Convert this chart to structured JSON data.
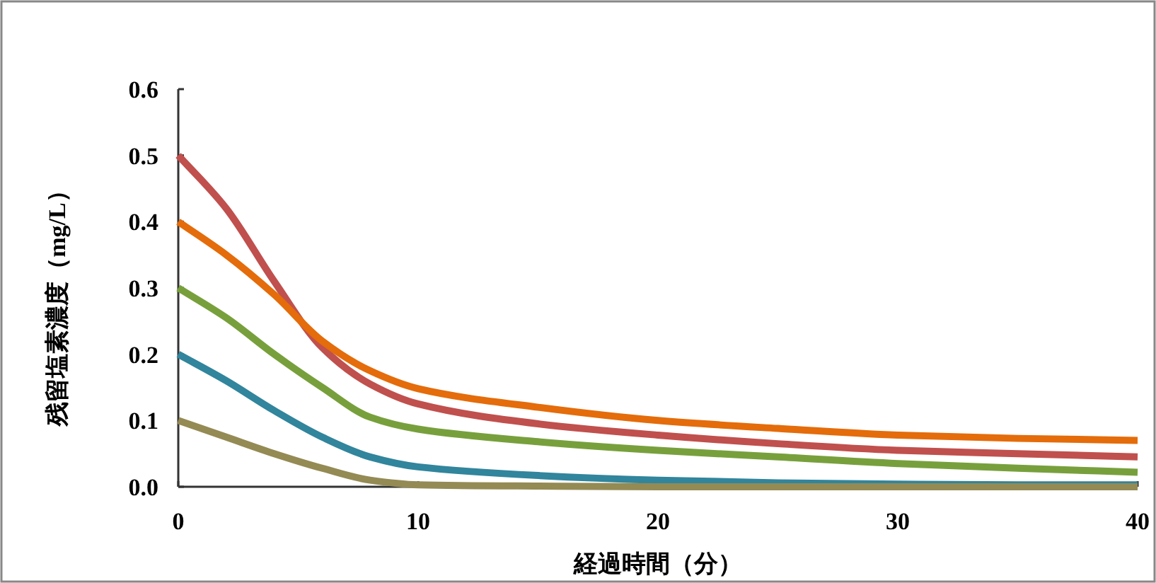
{
  "chart_data": {
    "type": "line",
    "xlabel": "経過時間（分）",
    "ylabel": "残留塩素濃度（mg/L）",
    "x": [
      0,
      2,
      4,
      6,
      8,
      10,
      15,
      20,
      25,
      30,
      35,
      40
    ],
    "series": [
      {
        "color": "#c0504d",
        "values": [
          0.5,
          0.42,
          0.31,
          0.21,
          0.155,
          0.125,
          0.095,
          0.078,
          0.065,
          0.055,
          0.05,
          0.045
        ]
      },
      {
        "color": "#e46c0a",
        "values": [
          0.4,
          0.35,
          0.29,
          0.22,
          0.175,
          0.148,
          0.12,
          0.1,
          0.088,
          0.078,
          0.073,
          0.07
        ]
      },
      {
        "color": "#77a03c",
        "values": [
          0.3,
          0.255,
          0.2,
          0.15,
          0.105,
          0.087,
          0.068,
          0.055,
          0.045,
          0.035,
          0.028,
          0.022
        ]
      },
      {
        "color": "#31859c",
        "values": [
          0.2,
          0.16,
          0.115,
          0.075,
          0.045,
          0.03,
          0.017,
          0.01,
          0.006,
          0.004,
          0.003,
          0.003
        ]
      },
      {
        "color": "#948a54",
        "values": [
          0.1,
          0.075,
          0.05,
          0.028,
          0.01,
          0.003,
          0.001,
          0,
          0,
          0,
          0,
          0
        ]
      }
    ],
    "xlim": [
      0,
      40
    ],
    "xticks": [
      0,
      10,
      20,
      30,
      40
    ],
    "ylim": [
      0,
      0.6
    ],
    "yticks": [
      {
        "value": 0,
        "label": "0.0"
      },
      0.1,
      0.2,
      0.3,
      0.4,
      0.5,
      0.6
    ],
    "grid": false,
    "marker": "none",
    "line_style": "solid"
  }
}
